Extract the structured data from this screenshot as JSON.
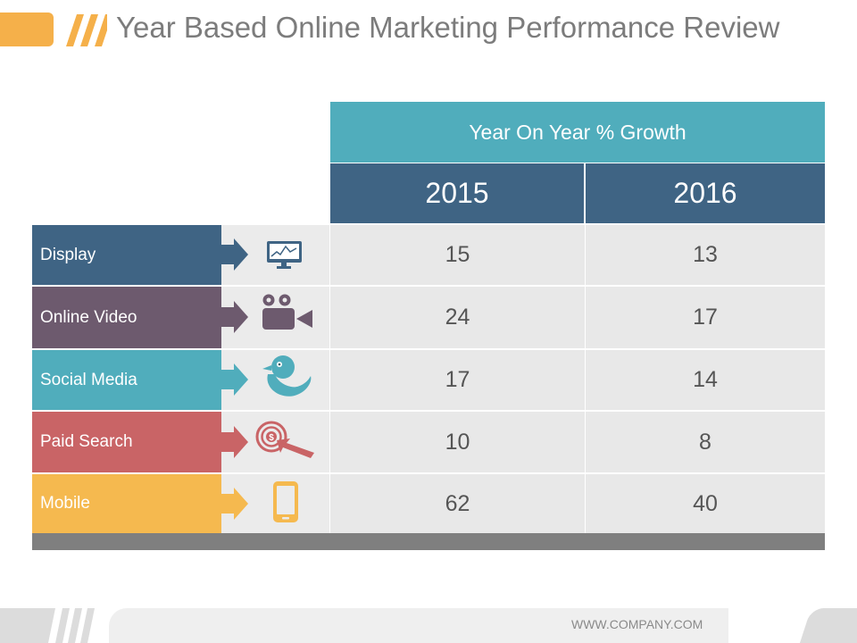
{
  "title": "Year Based Online Marketing Performance Review",
  "table": {
    "group_header": "Year On Year % Growth",
    "years": [
      "2015",
      "2016"
    ],
    "rows": [
      {
        "label": "Display",
        "icon": "monitor-chart-icon",
        "color": "#3f6484",
        "v2015": "15",
        "v2016": "13"
      },
      {
        "label": "Online Video",
        "icon": "video-camera-icon",
        "color": "#6d5a6e",
        "v2015": "24",
        "v2016": "17"
      },
      {
        "label": "Social Media",
        "icon": "bird-icon",
        "color": "#50adbc",
        "v2015": "17",
        "v2016": "14"
      },
      {
        "label": "Paid Search",
        "icon": "target-dollar-icon",
        "color": "#c96466",
        "v2015": "10",
        "v2016": "8"
      },
      {
        "label": "Mobile",
        "icon": "smartphone-icon",
        "color": "#f5b94f",
        "v2015": "62",
        "v2016": "40"
      }
    ]
  },
  "footer": {
    "website": "WWW.COMPANY.COM"
  }
}
